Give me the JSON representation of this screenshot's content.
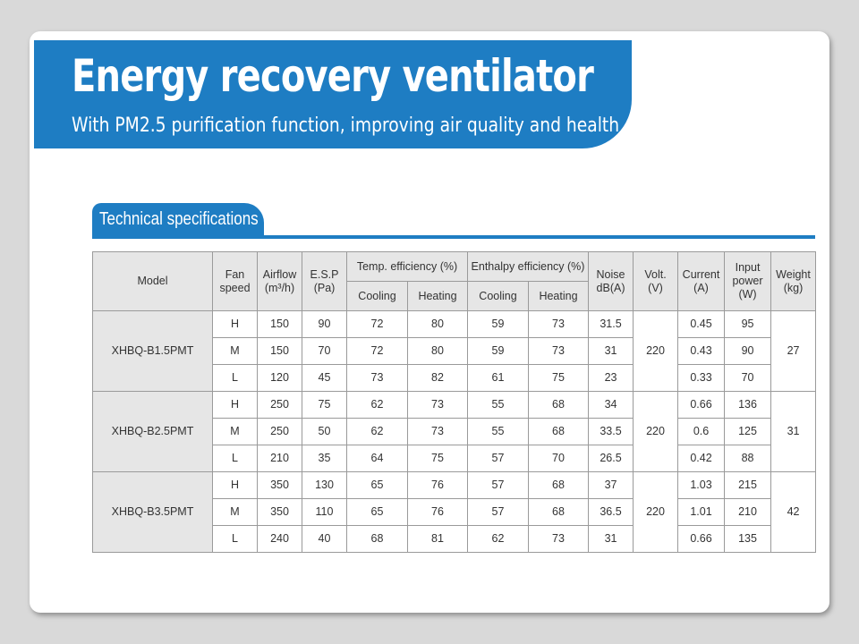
{
  "banner": {
    "title": "Energy recovery ventilator",
    "subtitle": "With PM2.5 purification function, improving air quality and health"
  },
  "section": {
    "title": "Technical specifications"
  },
  "table": {
    "headers": {
      "model": "Model",
      "fan_speed": "Fan speed",
      "airflow": "Airflow",
      "airflow_unit": "(m³/h)",
      "esp": "E.S.P",
      "esp_unit": "(Pa)",
      "temp_eff": "Temp. efficiency (%)",
      "enth_eff": "Enthalpy efficiency (%)",
      "cooling": "Cooling",
      "heating": "Heating",
      "noise": "Noise",
      "noise_unit": "dB(A)",
      "volt": "Volt.",
      "volt_unit": "(V)",
      "current": "Current",
      "current_unit": "(A)",
      "input": "Input",
      "input2": "power",
      "input_unit": "(W)",
      "weight": "Weight",
      "weight_unit": "(kg)"
    },
    "models": [
      {
        "model": "XHBQ-B1.5PMT",
        "volt": "220",
        "weight": "27",
        "rows": [
          {
            "speed": "H",
            "airflow": "150",
            "esp": "90",
            "temp_cool": "72",
            "temp_heat": "80",
            "enth_cool": "59",
            "enth_heat": "73",
            "noise": "31.5",
            "current": "0.45",
            "input": "95"
          },
          {
            "speed": "M",
            "airflow": "150",
            "esp": "70",
            "temp_cool": "72",
            "temp_heat": "80",
            "enth_cool": "59",
            "enth_heat": "73",
            "noise": "31",
            "current": "0.43",
            "input": "90"
          },
          {
            "speed": "L",
            "airflow": "120",
            "esp": "45",
            "temp_cool": "73",
            "temp_heat": "82",
            "enth_cool": "61",
            "enth_heat": "75",
            "noise": "23",
            "current": "0.33",
            "input": "70"
          }
        ]
      },
      {
        "model": "XHBQ-B2.5PMT",
        "volt": "220",
        "weight": "31",
        "rows": [
          {
            "speed": "H",
            "airflow": "250",
            "esp": "75",
            "temp_cool": "62",
            "temp_heat": "73",
            "enth_cool": "55",
            "enth_heat": "68",
            "noise": "34",
            "current": "0.66",
            "input": "136"
          },
          {
            "speed": "M",
            "airflow": "250",
            "esp": "50",
            "temp_cool": "62",
            "temp_heat": "73",
            "enth_cool": "55",
            "enth_heat": "68",
            "noise": "33.5",
            "current": "0.6",
            "input": "125"
          },
          {
            "speed": "L",
            "airflow": "210",
            "esp": "35",
            "temp_cool": "64",
            "temp_heat": "75",
            "enth_cool": "57",
            "enth_heat": "70",
            "noise": "26.5",
            "current": "0.42",
            "input": "88"
          }
        ]
      },
      {
        "model": "XHBQ-B3.5PMT",
        "volt": "220",
        "weight": "42",
        "rows": [
          {
            "speed": "H",
            "airflow": "350",
            "esp": "130",
            "temp_cool": "65",
            "temp_heat": "76",
            "enth_cool": "57",
            "enth_heat": "68",
            "noise": "37",
            "current": "1.03",
            "input": "215"
          },
          {
            "speed": "M",
            "airflow": "350",
            "esp": "110",
            "temp_cool": "65",
            "temp_heat": "76",
            "enth_cool": "57",
            "enth_heat": "68",
            "noise": "36.5",
            "current": "1.01",
            "input": "210"
          },
          {
            "speed": "L",
            "airflow": "240",
            "esp": "40",
            "temp_cool": "68",
            "temp_heat": "81",
            "enth_cool": "62",
            "enth_heat": "73",
            "noise": "31",
            "current": "0.66",
            "input": "135"
          }
        ]
      }
    ]
  },
  "colors": {
    "brand_blue": "#1e7dc3",
    "header_shade": "#e6e6e6",
    "grid_line": "#9a9a9a"
  }
}
